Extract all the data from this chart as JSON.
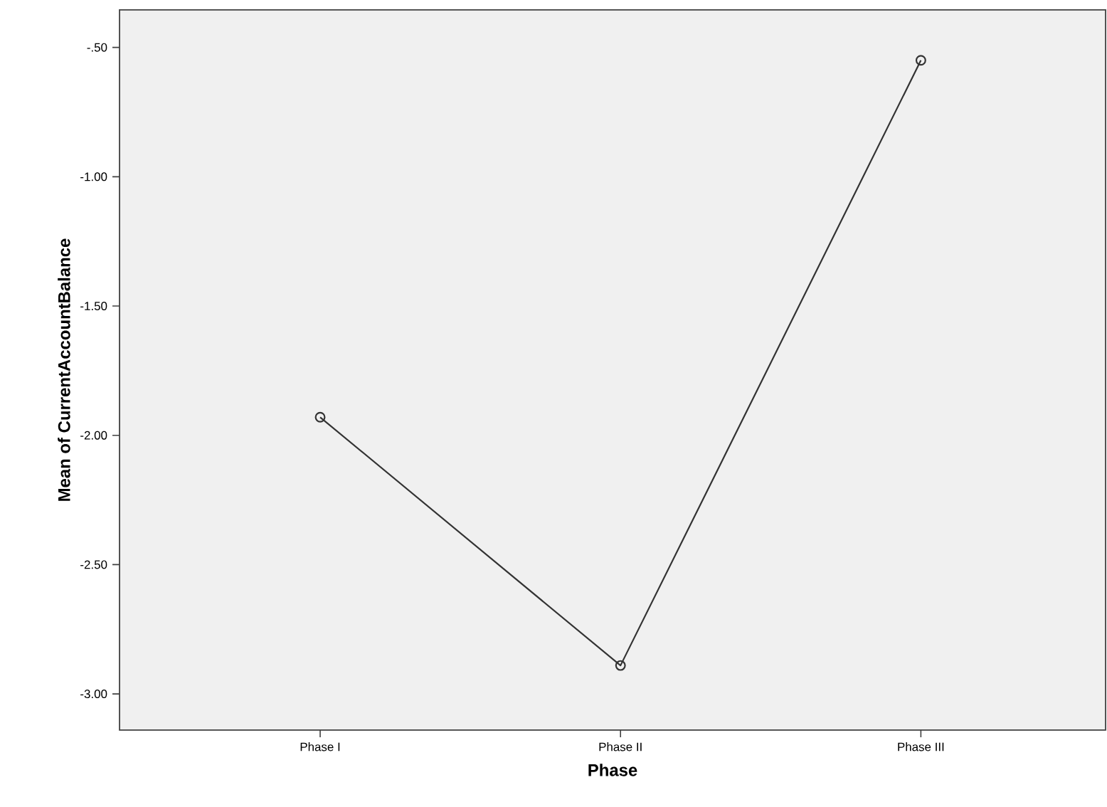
{
  "chart_data": {
    "type": "line",
    "xlabel": "Phase",
    "ylabel": "Mean of CurrentAccountBalance",
    "categories": [
      "Phase I",
      "Phase II",
      "Phase III"
    ],
    "values": [
      -1.93,
      -2.89,
      -0.55
    ],
    "color": "#333333",
    "marker": "circle",
    "ylim": [
      -3.14,
      -0.355
    ],
    "yticks": [
      {
        "value": -3.0,
        "label": "-3.00"
      },
      {
        "value": -2.5,
        "label": "-2.50"
      },
      {
        "value": -2.0,
        "label": "-2.00"
      },
      {
        "value": -1.5,
        "label": "-1.50"
      },
      {
        "value": -1.0,
        "label": "-1.00"
      },
      {
        "value": -0.5,
        "label": "-.50"
      }
    ],
    "grid": false
  }
}
